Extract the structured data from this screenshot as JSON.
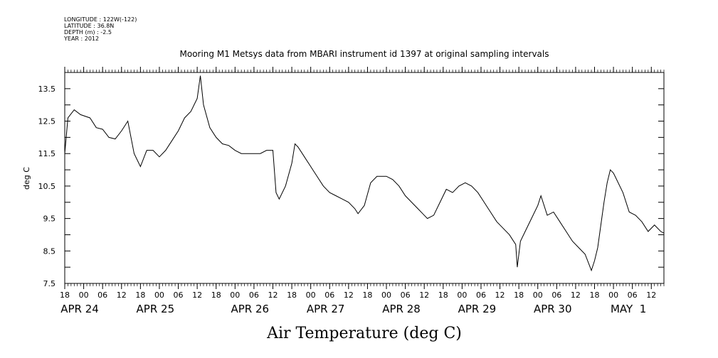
{
  "metadata": [
    "LONGITUDE : 122W(-122)",
    "LATITUDE : 36.8N",
    "DEPTH (m) : -2.5",
    "YEAR : 2012"
  ],
  "chart_data": {
    "type": "line",
    "title": "Mooring M1 Metsys data from MBARI instrument id 1397 at original sampling intervals",
    "xlabel": "Air Temperature (deg C)",
    "ylabel": "deg C",
    "xlim": [
      "2012-04-23T18:00",
      "2012-05-01T16:00"
    ],
    "ylim": [
      7.5,
      14.0
    ],
    "yticks": [
      7.5,
      8.5,
      9.5,
      10.5,
      11.5,
      12.5,
      13.5
    ],
    "ytick_labels": [
      "7.5",
      "8.5",
      "9.5",
      "10.5",
      "11.5",
      "12.5",
      "13.5"
    ],
    "hour_ticks": [
      {
        "t": "2012-04-23T18:00",
        "label": "18"
      },
      {
        "t": "2012-04-24T00:00",
        "label": "00"
      },
      {
        "t": "2012-04-24T06:00",
        "label": "06"
      },
      {
        "t": "2012-04-24T12:00",
        "label": "12"
      },
      {
        "t": "2012-04-24T18:00",
        "label": "18"
      },
      {
        "t": "2012-04-25T00:00",
        "label": "00"
      },
      {
        "t": "2012-04-25T06:00",
        "label": "06"
      },
      {
        "t": "2012-04-25T12:00",
        "label": "12"
      },
      {
        "t": "2012-04-25T18:00",
        "label": "18"
      },
      {
        "t": "2012-04-26T00:00",
        "label": "00"
      },
      {
        "t": "2012-04-26T06:00",
        "label": "06"
      },
      {
        "t": "2012-04-26T12:00",
        "label": "12"
      },
      {
        "t": "2012-04-26T18:00",
        "label": "18"
      },
      {
        "t": "2012-04-27T00:00",
        "label": "00"
      },
      {
        "t": "2012-04-27T06:00",
        "label": "06"
      },
      {
        "t": "2012-04-27T12:00",
        "label": "12"
      },
      {
        "t": "2012-04-27T18:00",
        "label": "18"
      },
      {
        "t": "2012-04-28T00:00",
        "label": "00"
      },
      {
        "t": "2012-04-28T06:00",
        "label": "06"
      },
      {
        "t": "2012-04-28T12:00",
        "label": "12"
      },
      {
        "t": "2012-04-28T18:00",
        "label": "18"
      },
      {
        "t": "2012-04-29T00:00",
        "label": "00"
      },
      {
        "t": "2012-04-29T06:00",
        "label": "06"
      },
      {
        "t": "2012-04-29T12:00",
        "label": "12"
      },
      {
        "t": "2012-04-29T18:00",
        "label": "18"
      },
      {
        "t": "2012-04-30T00:00",
        "label": "00"
      },
      {
        "t": "2012-04-30T06:00",
        "label": "06"
      },
      {
        "t": "2012-04-30T12:00",
        "label": "12"
      },
      {
        "t": "2012-04-30T18:00",
        "label": "18"
      },
      {
        "t": "2012-05-01T00:00",
        "label": "00"
      },
      {
        "t": "2012-05-01T06:00",
        "label": "06"
      },
      {
        "t": "2012-05-01T12:00",
        "label": "12"
      }
    ],
    "date_labels": [
      {
        "t": "2012-04-23T18:00",
        "label": "APR 24"
      },
      {
        "t": "2012-04-24T18:00",
        "label": "APR 25"
      },
      {
        "t": "2012-04-26T00:00",
        "label": "APR 26"
      },
      {
        "t": "2012-04-27T00:00",
        "label": "APR 27"
      },
      {
        "t": "2012-04-28T00:00",
        "label": "APR 28"
      },
      {
        "t": "2012-04-29T00:00",
        "label": "APR 29"
      },
      {
        "t": "2012-04-30T00:00",
        "label": "APR 30"
      },
      {
        "t": "2012-05-01T00:00",
        "label": "MAY  1"
      }
    ],
    "series": [
      {
        "name": "",
        "color": "#000000",
        "points": [
          [
            "2012-04-23T18:00",
            11.5
          ],
          [
            "2012-04-23T19:00",
            12.6
          ],
          [
            "2012-04-23T21:00",
            12.85
          ],
          [
            "2012-04-23T23:00",
            12.7
          ],
          [
            "2012-04-24T02:00",
            12.6
          ],
          [
            "2012-04-24T04:00",
            12.3
          ],
          [
            "2012-04-24T06:00",
            12.25
          ],
          [
            "2012-04-24T08:00",
            12.0
          ],
          [
            "2012-04-24T10:00",
            11.95
          ],
          [
            "2012-04-24T12:00",
            12.2
          ],
          [
            "2012-04-24T14:00",
            12.5
          ],
          [
            "2012-04-24T16:00",
            11.5
          ],
          [
            "2012-04-24T18:00",
            11.1
          ],
          [
            "2012-04-24T20:00",
            11.6
          ],
          [
            "2012-04-24T22:00",
            11.6
          ],
          [
            "2012-04-25T00:00",
            11.4
          ],
          [
            "2012-04-25T02:00",
            11.6
          ],
          [
            "2012-04-25T04:00",
            11.9
          ],
          [
            "2012-04-25T06:00",
            12.2
          ],
          [
            "2012-04-25T08:00",
            12.6
          ],
          [
            "2012-04-25T10:00",
            12.8
          ],
          [
            "2012-04-25T12:00",
            13.2
          ],
          [
            "2012-04-25T13:00",
            13.9
          ],
          [
            "2012-04-25T14:00",
            13.0
          ],
          [
            "2012-04-25T16:00",
            12.3
          ],
          [
            "2012-04-25T18:00",
            12.0
          ],
          [
            "2012-04-25T20:00",
            11.8
          ],
          [
            "2012-04-25T22:00",
            11.75
          ],
          [
            "2012-04-26T00:00",
            11.6
          ],
          [
            "2012-04-26T02:00",
            11.5
          ],
          [
            "2012-04-26T04:00",
            11.5
          ],
          [
            "2012-04-26T06:00",
            11.5
          ],
          [
            "2012-04-26T08:00",
            11.5
          ],
          [
            "2012-04-26T10:00",
            11.6
          ],
          [
            "2012-04-26T12:00",
            11.6
          ],
          [
            "2012-04-26T13:00",
            10.3
          ],
          [
            "2012-04-26T14:00",
            10.1
          ],
          [
            "2012-04-26T16:00",
            10.5
          ],
          [
            "2012-04-26T18:00",
            11.2
          ],
          [
            "2012-04-26T19:00",
            11.8
          ],
          [
            "2012-04-26T20:00",
            11.7
          ],
          [
            "2012-04-26T22:00",
            11.4
          ],
          [
            "2012-04-27T00:00",
            11.1
          ],
          [
            "2012-04-27T02:00",
            10.8
          ],
          [
            "2012-04-27T04:00",
            10.5
          ],
          [
            "2012-04-27T06:00",
            10.3
          ],
          [
            "2012-04-27T08:00",
            10.2
          ],
          [
            "2012-04-27T10:00",
            10.1
          ],
          [
            "2012-04-27T12:00",
            10.0
          ],
          [
            "2012-04-27T14:00",
            9.8
          ],
          [
            "2012-04-27T15:00",
            9.65
          ],
          [
            "2012-04-27T17:00",
            9.9
          ],
          [
            "2012-04-27T19:00",
            10.6
          ],
          [
            "2012-04-27T21:00",
            10.8
          ],
          [
            "2012-04-28T00:00",
            10.8
          ],
          [
            "2012-04-28T02:00",
            10.7
          ],
          [
            "2012-04-28T04:00",
            10.5
          ],
          [
            "2012-04-28T06:00",
            10.2
          ],
          [
            "2012-04-28T08:00",
            10.0
          ],
          [
            "2012-04-28T10:00",
            9.8
          ],
          [
            "2012-04-28T12:00",
            9.6
          ],
          [
            "2012-04-28T13:00",
            9.5
          ],
          [
            "2012-04-28T15:00",
            9.6
          ],
          [
            "2012-04-28T17:00",
            10.0
          ],
          [
            "2012-04-28T19:00",
            10.4
          ],
          [
            "2012-04-28T21:00",
            10.3
          ],
          [
            "2012-04-28T23:00",
            10.5
          ],
          [
            "2012-04-29T01:00",
            10.6
          ],
          [
            "2012-04-29T03:00",
            10.5
          ],
          [
            "2012-04-29T05:00",
            10.3
          ],
          [
            "2012-04-29T07:00",
            10.0
          ],
          [
            "2012-04-29T09:00",
            9.7
          ],
          [
            "2012-04-29T11:00",
            9.4
          ],
          [
            "2012-04-29T13:00",
            9.2
          ],
          [
            "2012-04-29T15:00",
            9.0
          ],
          [
            "2012-04-29T17:00",
            8.7
          ],
          [
            "2012-04-29T17:30",
            8.0
          ],
          [
            "2012-04-29T18:30",
            8.8
          ],
          [
            "2012-04-29T20:00",
            9.1
          ],
          [
            "2012-04-29T22:00",
            9.5
          ],
          [
            "2012-04-30T00:00",
            9.9
          ],
          [
            "2012-04-30T01:00",
            10.2
          ],
          [
            "2012-04-30T03:00",
            9.6
          ],
          [
            "2012-04-30T05:00",
            9.7
          ],
          [
            "2012-04-30T07:00",
            9.4
          ],
          [
            "2012-04-30T09:00",
            9.1
          ],
          [
            "2012-04-30T11:00",
            8.8
          ],
          [
            "2012-04-30T13:00",
            8.6
          ],
          [
            "2012-04-30T15:00",
            8.4
          ],
          [
            "2012-04-30T17:00",
            7.9
          ],
          [
            "2012-04-30T18:00",
            8.2
          ],
          [
            "2012-04-30T19:00",
            8.6
          ],
          [
            "2012-04-30T20:00",
            9.3
          ],
          [
            "2012-04-30T21:00",
            10.0
          ],
          [
            "2012-04-30T22:00",
            10.6
          ],
          [
            "2012-04-30T23:00",
            11.0
          ],
          [
            "2012-05-01T00:00",
            10.9
          ],
          [
            "2012-05-01T01:00",
            10.7
          ],
          [
            "2012-05-01T03:00",
            10.3
          ],
          [
            "2012-05-01T05:00",
            9.7
          ],
          [
            "2012-05-01T07:00",
            9.6
          ],
          [
            "2012-05-01T09:00",
            9.4
          ],
          [
            "2012-05-01T11:00",
            9.1
          ],
          [
            "2012-05-01T13:00",
            9.3
          ],
          [
            "2012-05-01T15:00",
            9.1
          ],
          [
            "2012-05-01T16:00",
            9.05
          ]
        ]
      }
    ]
  }
}
